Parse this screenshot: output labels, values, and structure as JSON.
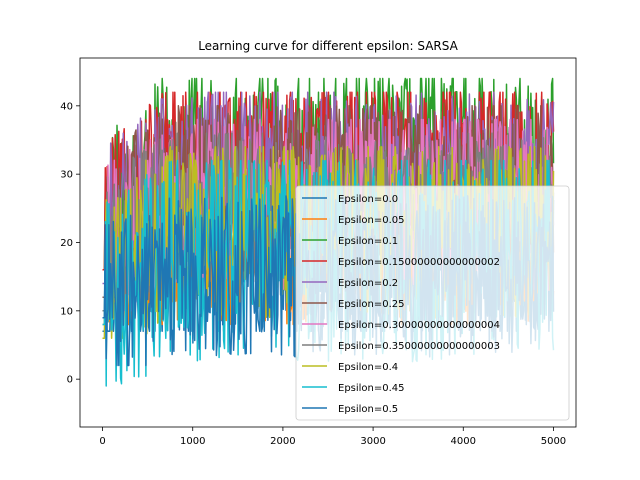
{
  "chart_data": {
    "type": "line",
    "title": "Learning curve for different epsilon: SARSA",
    "xlabel": "",
    "ylabel": "",
    "x_range": [
      0,
      5000
    ],
    "xlim": [
      -250,
      5250
    ],
    "ylim": [
      -7,
      47
    ],
    "x_ticks": [
      0,
      1000,
      2000,
      3000,
      4000,
      5000
    ],
    "y_ticks": [
      0,
      10,
      20,
      30,
      40
    ],
    "grid": false,
    "legend_position": "lower right",
    "series": [
      {
        "name": "Epsilon=0.0",
        "color": "#1f77b4",
        "range": [
          9,
          30
        ],
        "base": 16
      },
      {
        "name": "Epsilon=0.05",
        "color": "#ff7f0e",
        "range": [
          10,
          35
        ],
        "base": 20
      },
      {
        "name": "Epsilon=0.1",
        "color": "#2ca02c",
        "range": [
          18,
          44
        ],
        "base": 33
      },
      {
        "name": "Epsilon=0.15000000000000002",
        "color": "#d62728",
        "range": [
          18,
          42
        ],
        "base": 32
      },
      {
        "name": "Epsilon=0.2",
        "color": "#9467bd",
        "range": [
          16,
          42
        ],
        "base": 30
      },
      {
        "name": "Epsilon=0.25",
        "color": "#8c564b",
        "range": [
          14,
          40
        ],
        "base": 28
      },
      {
        "name": "Epsilon=0.30000000000000004",
        "color": "#e377c2",
        "range": [
          12,
          38
        ],
        "base": 26
      },
      {
        "name": "Epsilon=0.35000000000000003",
        "color": "#7f7f7f",
        "range": [
          12,
          36
        ],
        "base": 25
      },
      {
        "name": "Epsilon=0.4",
        "color": "#bcbd22",
        "range": [
          8,
          34
        ],
        "base": 22
      },
      {
        "name": "Epsilon=0.45",
        "color": "#17becf",
        "range": [
          1,
          32
        ],
        "base": 18
      },
      {
        "name": "Epsilon=0.5",
        "color": "#1f77b4",
        "range": [
          4,
          28
        ],
        "base": 15
      }
    ]
  }
}
